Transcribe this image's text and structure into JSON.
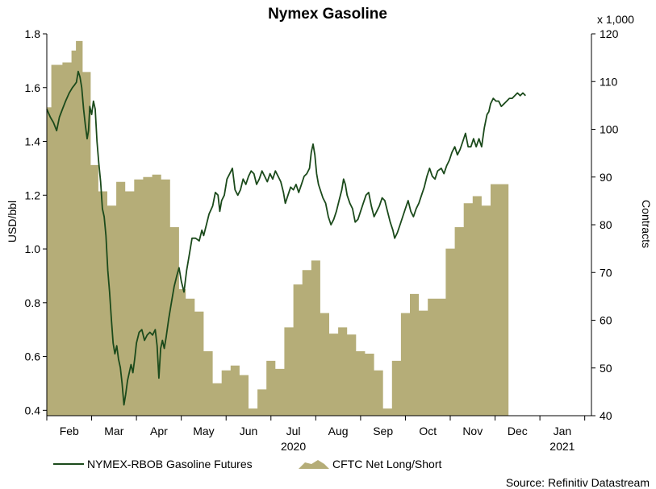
{
  "chart_data": {
    "type": "line+area",
    "title": "Nymex Gasoline",
    "y_left_label": "USD/bbl",
    "y_right_label": "Contracts",
    "y_right_multiplier": "x 1,000",
    "y_left_range": [
      0.38,
      1.8
    ],
    "y_right_range": [
      40,
      120
    ],
    "y_left_ticks": [
      "0.4",
      "0.6",
      "0.8",
      "1.0",
      "1.2",
      "1.4",
      "1.6",
      "1.8"
    ],
    "y_right_ticks": [
      "40",
      "50",
      "60",
      "70",
      "80",
      "90",
      "100",
      "110",
      "120"
    ],
    "x_month_labels": [
      "Feb",
      "Mar",
      "Apr",
      "May",
      "Jun",
      "Jul",
      "Aug",
      "Sep",
      "Oct",
      "Nov",
      "Dec",
      "Jan"
    ],
    "x_year_labels": [
      "2020",
      "2021"
    ],
    "x_range_months": [
      0,
      12.15
    ],
    "grid": false,
    "legend_position": "bottom-left",
    "source": "Source: Refinitiv Datastream",
    "series": [
      {
        "name": "NYMEX-RBOB Gasoline Futures",
        "kind": "line",
        "axis": "left",
        "color": "#1b4a1b",
        "points": [
          [
            0.0,
            1.52
          ],
          [
            0.08,
            1.49
          ],
          [
            0.15,
            1.47
          ],
          [
            0.22,
            1.44
          ],
          [
            0.28,
            1.49
          ],
          [
            0.35,
            1.52
          ],
          [
            0.42,
            1.55
          ],
          [
            0.5,
            1.58
          ],
          [
            0.57,
            1.6
          ],
          [
            0.62,
            1.61
          ],
          [
            0.66,
            1.62
          ],
          [
            0.7,
            1.66
          ],
          [
            0.74,
            1.64
          ],
          [
            0.78,
            1.6
          ],
          [
            0.82,
            1.52
          ],
          [
            0.86,
            1.46
          ],
          [
            0.9,
            1.41
          ],
          [
            0.93,
            1.44
          ],
          [
            0.96,
            1.53
          ],
          [
            1.0,
            1.5
          ],
          [
            1.04,
            1.55
          ],
          [
            1.08,
            1.52
          ],
          [
            1.12,
            1.4
          ],
          [
            1.16,
            1.32
          ],
          [
            1.2,
            1.25
          ],
          [
            1.24,
            1.15
          ],
          [
            1.28,
            1.12
          ],
          [
            1.32,
            1.05
          ],
          [
            1.36,
            0.92
          ],
          [
            1.4,
            0.84
          ],
          [
            1.44,
            0.74
          ],
          [
            1.48,
            0.65
          ],
          [
            1.52,
            0.61
          ],
          [
            1.56,
            0.64
          ],
          [
            1.6,
            0.59
          ],
          [
            1.64,
            0.56
          ],
          [
            1.68,
            0.5
          ],
          [
            1.72,
            0.42
          ],
          [
            1.76,
            0.46
          ],
          [
            1.8,
            0.51
          ],
          [
            1.84,
            0.54
          ],
          [
            1.88,
            0.57
          ],
          [
            1.92,
            0.54
          ],
          [
            1.96,
            0.59
          ],
          [
            2.0,
            0.65
          ],
          [
            2.06,
            0.69
          ],
          [
            2.12,
            0.7
          ],
          [
            2.18,
            0.66
          ],
          [
            2.24,
            0.68
          ],
          [
            2.3,
            0.69
          ],
          [
            2.36,
            0.68
          ],
          [
            2.42,
            0.7
          ],
          [
            2.46,
            0.64
          ],
          [
            2.5,
            0.52
          ],
          [
            2.54,
            0.63
          ],
          [
            2.58,
            0.66
          ],
          [
            2.62,
            0.63
          ],
          [
            2.66,
            0.67
          ],
          [
            2.72,
            0.74
          ],
          [
            2.78,
            0.8
          ],
          [
            2.84,
            0.86
          ],
          [
            2.9,
            0.9
          ],
          [
            2.95,
            0.93
          ],
          [
            3.0,
            0.88
          ],
          [
            3.06,
            0.84
          ],
          [
            3.12,
            0.92
          ],
          [
            3.18,
            0.98
          ],
          [
            3.24,
            1.04
          ],
          [
            3.32,
            1.04
          ],
          [
            3.4,
            1.03
          ],
          [
            3.46,
            1.07
          ],
          [
            3.5,
            1.05
          ],
          [
            3.56,
            1.09
          ],
          [
            3.62,
            1.13
          ],
          [
            3.7,
            1.16
          ],
          [
            3.76,
            1.21
          ],
          [
            3.82,
            1.2
          ],
          [
            3.86,
            1.14
          ],
          [
            3.9,
            1.18
          ],
          [
            3.96,
            1.2
          ],
          [
            4.02,
            1.26
          ],
          [
            4.08,
            1.28
          ],
          [
            4.14,
            1.3
          ],
          [
            4.2,
            1.22
          ],
          [
            4.26,
            1.2
          ],
          [
            4.32,
            1.22
          ],
          [
            4.38,
            1.26
          ],
          [
            4.44,
            1.24
          ],
          [
            4.5,
            1.27
          ],
          [
            4.56,
            1.29
          ],
          [
            4.62,
            1.28
          ],
          [
            4.68,
            1.24
          ],
          [
            4.74,
            1.26
          ],
          [
            4.8,
            1.29
          ],
          [
            4.86,
            1.27
          ],
          [
            4.92,
            1.25
          ],
          [
            4.98,
            1.28
          ],
          [
            5.04,
            1.26
          ],
          [
            5.1,
            1.29
          ],
          [
            5.16,
            1.27
          ],
          [
            5.22,
            1.25
          ],
          [
            5.28,
            1.21
          ],
          [
            5.32,
            1.17
          ],
          [
            5.38,
            1.2
          ],
          [
            5.44,
            1.23
          ],
          [
            5.5,
            1.22
          ],
          [
            5.56,
            1.24
          ],
          [
            5.62,
            1.21
          ],
          [
            5.68,
            1.24
          ],
          [
            5.74,
            1.27
          ],
          [
            5.8,
            1.28
          ],
          [
            5.86,
            1.3
          ],
          [
            5.9,
            1.36
          ],
          [
            5.94,
            1.39
          ],
          [
            5.98,
            1.35
          ],
          [
            6.02,
            1.28
          ],
          [
            6.06,
            1.24
          ],
          [
            6.1,
            1.22
          ],
          [
            6.16,
            1.19
          ],
          [
            6.22,
            1.17
          ],
          [
            6.28,
            1.12
          ],
          [
            6.34,
            1.09
          ],
          [
            6.4,
            1.11
          ],
          [
            6.46,
            1.14
          ],
          [
            6.52,
            1.18
          ],
          [
            6.58,
            1.22
          ],
          [
            6.62,
            1.26
          ],
          [
            6.66,
            1.24
          ],
          [
            6.7,
            1.2
          ],
          [
            6.76,
            1.17
          ],
          [
            6.82,
            1.15
          ],
          [
            6.88,
            1.1
          ],
          [
            6.94,
            1.11
          ],
          [
            7.0,
            1.14
          ],
          [
            7.06,
            1.17
          ],
          [
            7.12,
            1.2
          ],
          [
            7.18,
            1.21
          ],
          [
            7.24,
            1.16
          ],
          [
            7.3,
            1.12
          ],
          [
            7.36,
            1.14
          ],
          [
            7.42,
            1.16
          ],
          [
            7.48,
            1.19
          ],
          [
            7.54,
            1.18
          ],
          [
            7.6,
            1.14
          ],
          [
            7.66,
            1.1
          ],
          [
            7.72,
            1.07
          ],
          [
            7.76,
            1.04
          ],
          [
            7.82,
            1.06
          ],
          [
            7.88,
            1.09
          ],
          [
            7.94,
            1.12
          ],
          [
            8.0,
            1.15
          ],
          [
            8.06,
            1.18
          ],
          [
            8.12,
            1.14
          ],
          [
            8.18,
            1.12
          ],
          [
            8.24,
            1.15
          ],
          [
            8.3,
            1.17
          ],
          [
            8.36,
            1.2
          ],
          [
            8.42,
            1.23
          ],
          [
            8.48,
            1.27
          ],
          [
            8.54,
            1.3
          ],
          [
            8.6,
            1.27
          ],
          [
            8.66,
            1.26
          ],
          [
            8.72,
            1.29
          ],
          [
            8.8,
            1.3
          ],
          [
            8.86,
            1.28
          ],
          [
            8.92,
            1.31
          ],
          [
            8.98,
            1.33
          ],
          [
            9.04,
            1.36
          ],
          [
            9.1,
            1.38
          ],
          [
            9.16,
            1.35
          ],
          [
            9.22,
            1.37
          ],
          [
            9.28,
            1.4
          ],
          [
            9.34,
            1.43
          ],
          [
            9.4,
            1.38
          ],
          [
            9.46,
            1.38
          ],
          [
            9.52,
            1.41
          ],
          [
            9.58,
            1.38
          ],
          [
            9.64,
            1.41
          ],
          [
            9.7,
            1.38
          ],
          [
            9.76,
            1.45
          ],
          [
            9.82,
            1.5
          ],
          [
            9.86,
            1.51
          ],
          [
            9.9,
            1.54
          ],
          [
            9.96,
            1.56
          ],
          [
            10.02,
            1.55
          ],
          [
            10.08,
            1.55
          ],
          [
            10.14,
            1.53
          ],
          [
            10.2,
            1.54
          ],
          [
            10.26,
            1.55
          ],
          [
            10.32,
            1.56
          ],
          [
            10.38,
            1.56
          ],
          [
            10.44,
            1.57
          ],
          [
            10.5,
            1.58
          ],
          [
            10.56,
            1.57
          ],
          [
            10.62,
            1.58
          ],
          [
            10.68,
            1.57
          ]
        ]
      },
      {
        "name": "CFTC Net Long/Short",
        "kind": "area-step",
        "axis": "right",
        "color": "#b5ad78",
        "points": [
          [
            -0.05,
            104.6
          ],
          [
            0.1,
            113.5
          ],
          [
            0.35,
            114
          ],
          [
            0.55,
            116.5
          ],
          [
            0.65,
            118.5
          ],
          [
            0.8,
            112
          ],
          [
            0.98,
            92.5
          ],
          [
            1.15,
            87
          ],
          [
            1.35,
            84
          ],
          [
            1.55,
            89
          ],
          [
            1.75,
            87
          ],
          [
            1.95,
            89.5
          ],
          [
            2.15,
            90
          ],
          [
            2.35,
            90.5
          ],
          [
            2.55,
            89.5
          ],
          [
            2.75,
            79.5
          ],
          [
            2.95,
            66.5
          ],
          [
            3.1,
            64.5
          ],
          [
            3.3,
            61.8
          ],
          [
            3.5,
            53.5
          ],
          [
            3.7,
            46.8
          ],
          [
            3.9,
            49.5
          ],
          [
            4.1,
            50.5
          ],
          [
            4.3,
            48.5
          ],
          [
            4.5,
            41.5
          ],
          [
            4.7,
            45.5
          ],
          [
            4.9,
            51.5
          ],
          [
            5.1,
            49.8
          ],
          [
            5.3,
            58.5
          ],
          [
            5.5,
            67.5
          ],
          [
            5.7,
            70.5
          ],
          [
            5.9,
            72.5
          ],
          [
            6.1,
            61.5
          ],
          [
            6.3,
            57.2
          ],
          [
            6.5,
            58.5
          ],
          [
            6.7,
            57
          ],
          [
            6.9,
            53.5
          ],
          [
            7.1,
            53
          ],
          [
            7.3,
            49.5
          ],
          [
            7.5,
            41.5
          ],
          [
            7.7,
            51.5
          ],
          [
            7.9,
            61.5
          ],
          [
            8.1,
            65.5
          ],
          [
            8.3,
            62
          ],
          [
            8.5,
            64.5
          ],
          [
            8.7,
            64.5
          ],
          [
            8.9,
            75
          ],
          [
            9.1,
            79.5
          ],
          [
            9.3,
            84.5
          ],
          [
            9.5,
            86
          ],
          [
            9.7,
            84
          ],
          [
            9.9,
            88.5
          ],
          [
            10.1,
            88.5
          ]
        ]
      }
    ]
  }
}
